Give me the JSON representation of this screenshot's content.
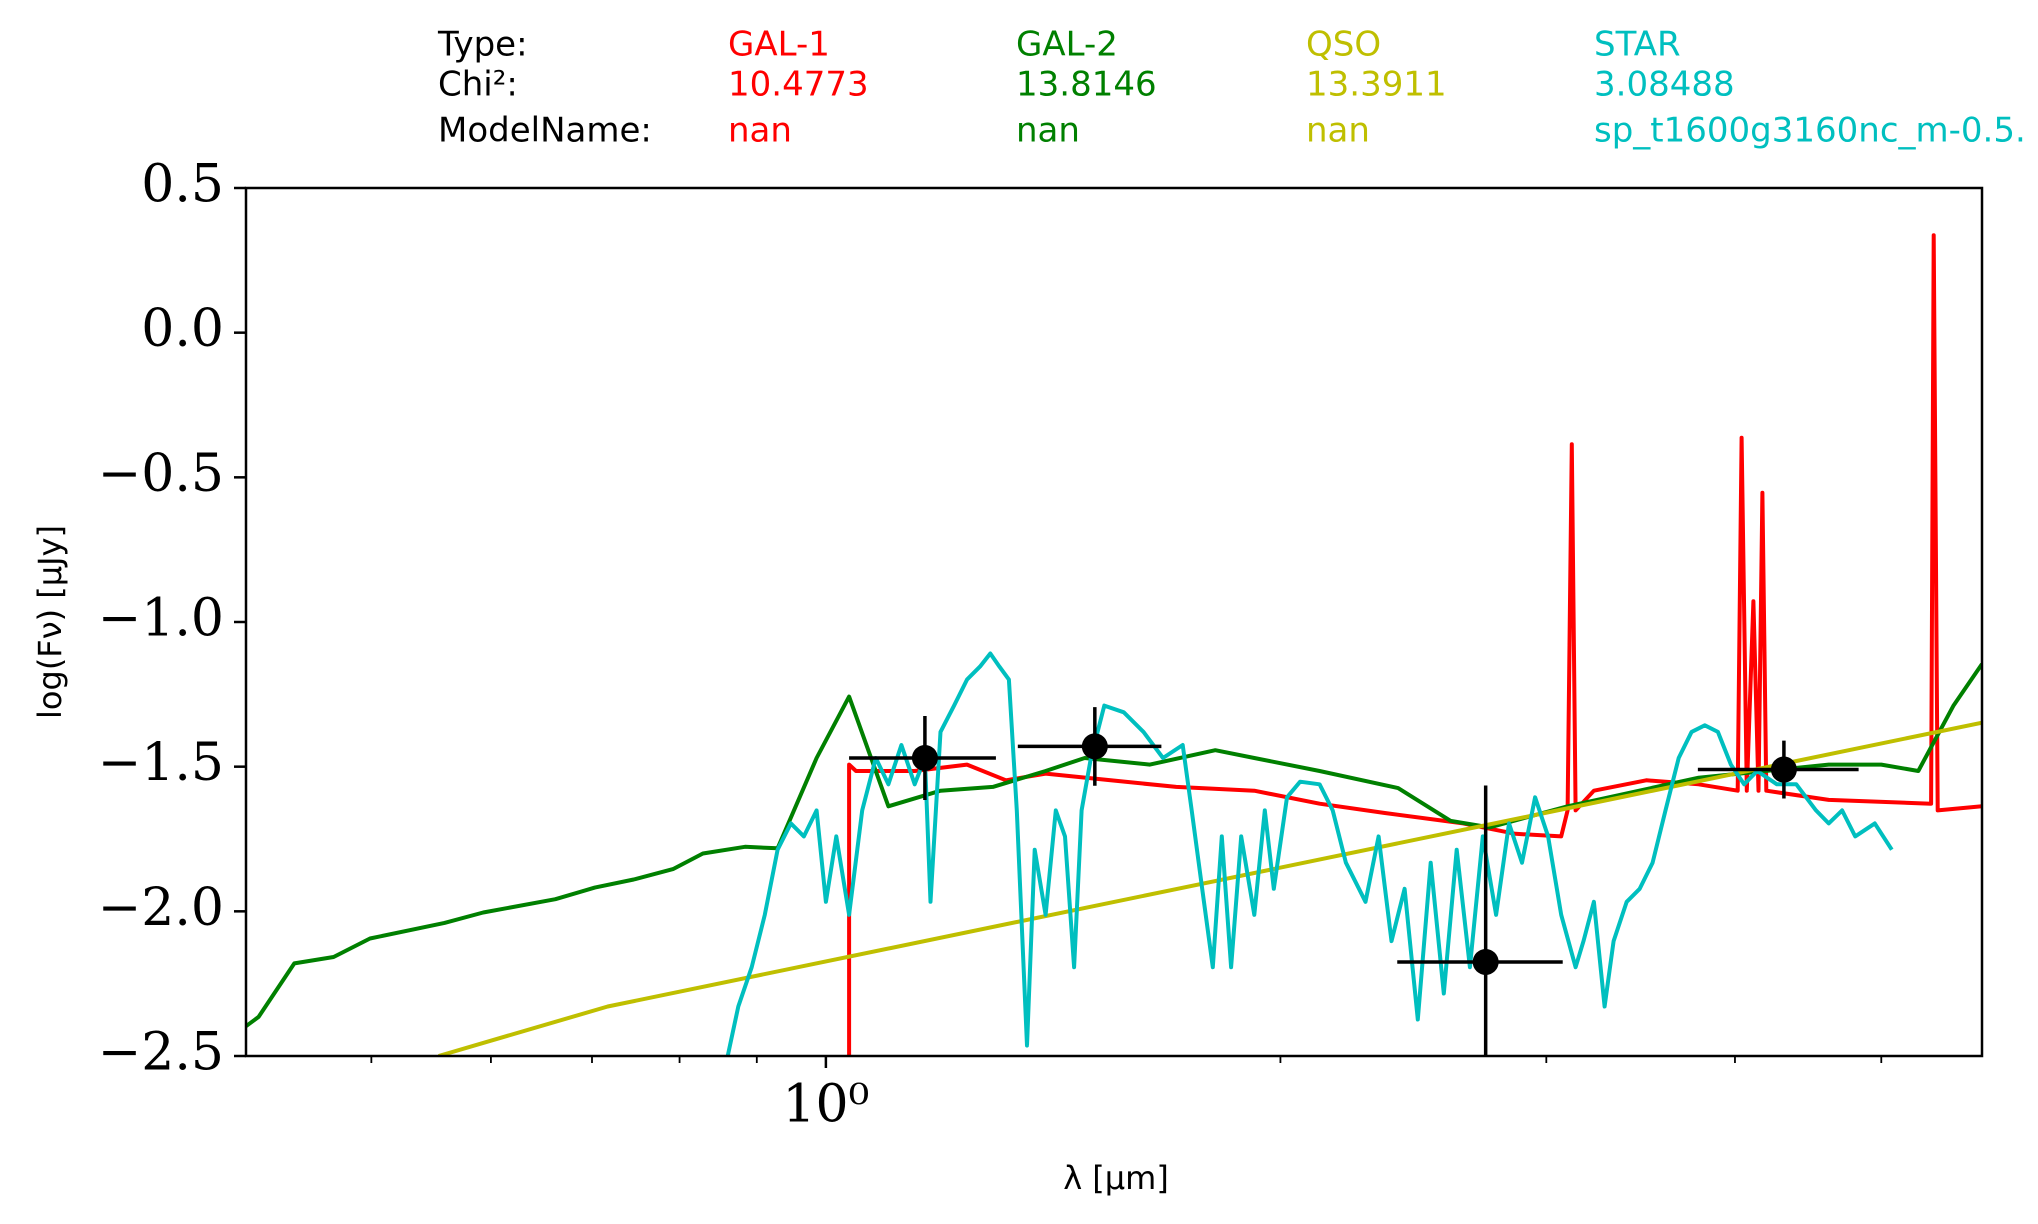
{
  "chart_data": {
    "type": "line",
    "legend_table": {
      "row_labels": [
        "Type:",
        "Chi²:",
        "ModelName:"
      ]
    },
    "xlabel": "λ [μm]",
    "ylabel": "log(Fν) [μJy]",
    "xscale": "log",
    "xlim": [
      0.413,
      5.83
    ],
    "ylim": [
      -2.5,
      0.5
    ],
    "xticks": [
      {
        "value": 1,
        "label": "10⁰"
      }
    ],
    "xminorticks": [
      0.5,
      0.6,
      0.7,
      0.8,
      0.9,
      2,
      3,
      4,
      5
    ],
    "yticks": [
      {
        "value": 0.5,
        "label": "0.5"
      },
      {
        "value": 0,
        "label": "0.0"
      },
      {
        "value": -0.5,
        "label": "−0.5"
      },
      {
        "value": -1,
        "label": "−1.0"
      },
      {
        "value": -1.5,
        "label": "−1.5"
      },
      {
        "value": -2,
        "label": "−2.0"
      },
      {
        "value": -2.5,
        "label": "−2.5"
      }
    ],
    "series": [
      {
        "name": "GAL-1",
        "color": "#ff0000",
        "chi2": 10.4773,
        "model": "nan",
        "x": [
          1.036,
          1.036,
          1.047,
          1.145,
          1.24,
          1.316,
          1.398,
          1.544,
          1.706,
          1.922,
          2.123,
          2.345,
          2.643,
          2.862,
          3.069,
          3.099,
          3.119,
          3.137,
          3.226,
          3.494,
          3.784,
          4.017,
          4.041,
          4.073,
          4.114,
          4.146,
          4.171,
          4.196,
          4.615,
          5.395,
          5.416,
          5.449,
          5.83
        ],
        "values": [
          -2.5,
          -1.493,
          -1.515,
          -1.515,
          -1.493,
          -1.547,
          -1.524,
          -1.547,
          -1.57,
          -1.583,
          -1.628,
          -1.66,
          -1.696,
          -1.732,
          -1.741,
          -1.651,
          -0.386,
          -1.651,
          -1.583,
          -1.547,
          -1.561,
          -1.583,
          -0.363,
          -1.583,
          -0.928,
          -1.583,
          -0.553,
          -1.583,
          -1.615,
          -1.628,
          0.337,
          -1.651,
          -1.637
        ]
      },
      {
        "name": "GAL-2",
        "color": "#008000",
        "chi2": 13.8146,
        "model": "nan",
        "x": [
          0.413,
          0.421,
          0.4446,
          0.472,
          0.499,
          0.559,
          0.593,
          0.662,
          0.703,
          0.746,
          0.792,
          0.829,
          0.884,
          0.929,
          0.986,
          1.036,
          1.1,
          1.191,
          1.29,
          1.398,
          1.484,
          1.639,
          1.811,
          1.922,
          2.123,
          2.393,
          2.592,
          2.751,
          3.099,
          3.784,
          4.615,
          5.0,
          5.29,
          5.58,
          5.83
        ],
        "values": [
          -2.397,
          -2.365,
          -2.18,
          -2.158,
          -2.094,
          -2.04,
          -2.004,
          -1.958,
          -1.918,
          -1.89,
          -1.854,
          -1.8,
          -1.777,
          -1.782,
          -1.47,
          -1.258,
          -1.637,
          -1.583,
          -1.57,
          -1.515,
          -1.47,
          -1.493,
          -1.443,
          -1.47,
          -1.515,
          -1.574,
          -1.687,
          -1.71,
          -1.637,
          -1.538,
          -1.493,
          -1.493,
          -1.515,
          -1.29,
          -1.145
        ]
      },
      {
        "name": "QSO",
        "color": "#bfbf00",
        "chi2": 13.3911,
        "model": "nan",
        "x": [
          0.554,
          0.717,
          5.83
        ],
        "values": [
          -2.5,
          -2.329,
          -1.348
        ]
      },
      {
        "name": "STAR",
        "color": "#00bfbf",
        "chi2": 3.08488,
        "model": "sp_t1600g3160nc_m-0.5.",
        "x": [
          0.861,
          0.875,
          0.893,
          0.911,
          0.929,
          0.948,
          0.967,
          0.986,
          1.0,
          1.016,
          1.036,
          1.057,
          1.079,
          1.1,
          1.122,
          1.145,
          1.163,
          1.173,
          1.191,
          1.216,
          1.24,
          1.265,
          1.285,
          1.303,
          1.322,
          1.338,
          1.359,
          1.375,
          1.398,
          1.42,
          1.44,
          1.46,
          1.477,
          1.498,
          1.529,
          1.575,
          1.623,
          1.672,
          1.723,
          1.747,
          1.775,
          1.804,
          1.829,
          1.855,
          1.884,
          1.922,
          1.953,
          1.98,
          2.02,
          2.061,
          2.123,
          2.166,
          2.21,
          2.277,
          2.323,
          2.369,
          2.417,
          2.466,
          2.515,
          2.566,
          2.617,
          2.67,
          2.723,
          2.779,
          2.834,
          2.891,
          2.949,
          3.008,
          3.069,
          3.137,
          3.175,
          3.226,
          3.279,
          3.324,
          3.391,
          3.459,
          3.528,
          3.598,
          3.671,
          3.744,
          3.82,
          3.897,
          3.975,
          4.056,
          4.138,
          4.264,
          4.392,
          4.526,
          4.615,
          4.71,
          4.805,
          4.951,
          5.081
        ],
        "values": [
          -2.5,
          -2.329,
          -2.193,
          -2.012,
          -1.787,
          -1.696,
          -1.741,
          -1.651,
          -1.967,
          -1.741,
          -2.012,
          -1.651,
          -1.47,
          -1.561,
          -1.425,
          -1.561,
          -1.47,
          -1.967,
          -1.38,
          -1.289,
          -1.199,
          -1.154,
          -1.109,
          -1.154,
          -1.199,
          -1.651,
          -2.464,
          -1.787,
          -2.012,
          -1.651,
          -1.741,
          -2.193,
          -1.651,
          -1.47,
          -1.289,
          -1.312,
          -1.38,
          -1.47,
          -1.425,
          -1.651,
          -1.922,
          -2.193,
          -1.741,
          -2.193,
          -1.741,
          -2.012,
          -1.651,
          -1.922,
          -1.606,
          -1.552,
          -1.561,
          -1.651,
          -1.832,
          -1.967,
          -1.741,
          -2.103,
          -1.922,
          -2.374,
          -1.832,
          -2.284,
          -1.787,
          -2.193,
          -1.741,
          -2.012,
          -1.696,
          -1.832,
          -1.606,
          -1.741,
          -2.012,
          -2.193,
          -2.103,
          -1.967,
          -2.329,
          -2.103,
          -1.967,
          -1.922,
          -1.832,
          -1.651,
          -1.47,
          -1.38,
          -1.357,
          -1.38,
          -1.493,
          -1.561,
          -1.515,
          -1.561,
          -1.561,
          -1.651,
          -1.696,
          -1.651,
          -1.741,
          -1.696,
          -1.787
        ]
      }
    ],
    "points": {
      "color": "#000000",
      "x": [
        1.163,
        1.507,
        2.735,
        4.31
      ],
      "y": [
        -1.47,
        -1.43,
        -2.175,
        -1.51
      ],
      "x_low": [
        1.036,
        1.34,
        2.39,
        3.78
      ],
      "x_high": [
        1.296,
        1.668,
        3.076,
        4.83
      ],
      "yerr": [
        0.145,
        0.136,
        0.61,
        0.1
      ]
    }
  }
}
